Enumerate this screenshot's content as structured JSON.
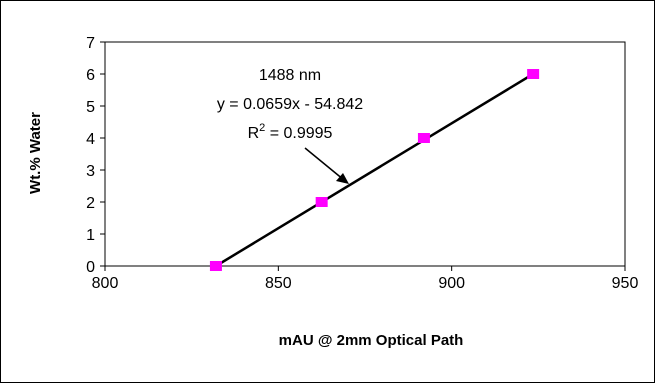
{
  "chart_data": {
    "type": "scatter",
    "title": "",
    "xlabel": "mAU @ 2mm Optical Path",
    "ylabel": "Wt.% Water",
    "xlim": [
      800,
      950
    ],
    "ylim": [
      0,
      7
    ],
    "x_ticks": [
      800,
      850,
      900,
      950
    ],
    "y_ticks": [
      0,
      1,
      2,
      3,
      4,
      5,
      6,
      7
    ],
    "grid": false,
    "legend": "none",
    "series": [
      {
        "x": [
          832,
          862.5,
          892,
          923.5
        ],
        "y": [
          0,
          2,
          4,
          6
        ],
        "marker": "square",
        "color": "#ff00ff"
      }
    ],
    "trendline": {
      "x": [
        832,
        923.5
      ],
      "y": [
        0,
        6
      ],
      "color": "#000000"
    },
    "annotation": {
      "wavelength": "1488 nm",
      "equation": "y = 0.0659x - 54.842",
      "r_squared_prefix": "R",
      "r_squared_sup": "2",
      "r_squared_value": " = 0.9995"
    }
  }
}
